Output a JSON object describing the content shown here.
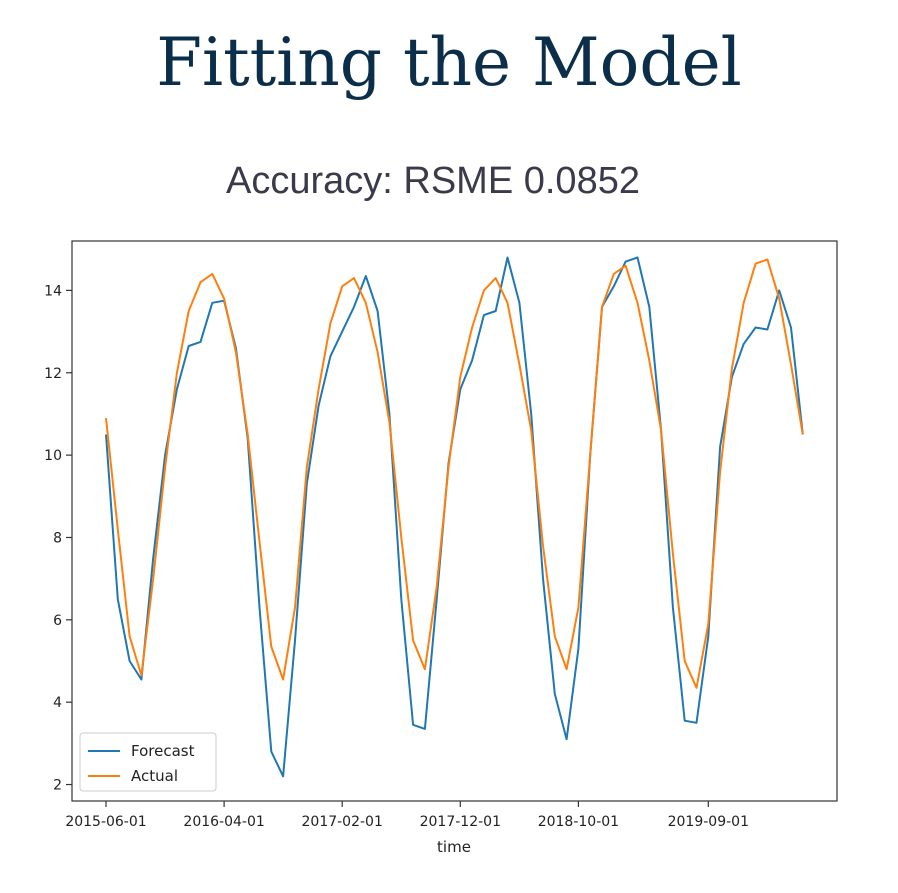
{
  "header": {
    "title": "Fitting the Model",
    "subtitle": "Accuracy: RSME 0.0852"
  },
  "chart_data": {
    "type": "line",
    "title": "",
    "xlabel": "time",
    "ylabel": "",
    "x_tick_labels": [
      "2015-06-01",
      "2016-04-01",
      "2017-02-01",
      "2017-12-01",
      "2018-10-01",
      "2019-09-01"
    ],
    "x_start": "2015-06-01",
    "x_interval": "monthly",
    "y_ticks": [
      2,
      4,
      6,
      8,
      10,
      12,
      14
    ],
    "y_tick_labels": [
      "2",
      "4",
      "6",
      "8",
      "10",
      "12",
      "14"
    ],
    "ylim": [
      1.6,
      15.2
    ],
    "legend_position": "lower-left",
    "grid": false,
    "series": [
      {
        "name": "Forecast",
        "color": "#1f77b4",
        "values": [
          10.5,
          6.5,
          5.0,
          4.55,
          7.5,
          10.0,
          11.6,
          12.65,
          12.75,
          13.7,
          13.75,
          12.6,
          10.4,
          6.3,
          2.8,
          2.2,
          5.5,
          9.3,
          11.2,
          12.4,
          13.0,
          13.6,
          14.35,
          13.5,
          11.0,
          6.5,
          3.45,
          3.35,
          6.5,
          9.8,
          11.6,
          12.3,
          13.4,
          13.5,
          14.8,
          13.7,
          11.0,
          7.0,
          4.2,
          3.1,
          5.3,
          10.0,
          13.6,
          14.1,
          14.7,
          14.8,
          13.6,
          10.6,
          6.3,
          3.55,
          3.5,
          5.6,
          10.2,
          11.9,
          12.7,
          13.1,
          13.05,
          14.0,
          13.1,
          10.5
        ]
      },
      {
        "name": "Actual",
        "color": "#ff7f0e",
        "values": [
          10.9,
          8.2,
          5.6,
          4.65,
          7.0,
          9.7,
          12.0,
          13.5,
          14.2,
          14.4,
          13.8,
          12.5,
          10.5,
          7.9,
          5.35,
          4.55,
          6.3,
          9.7,
          11.6,
          13.2,
          14.1,
          14.3,
          13.7,
          12.5,
          10.8,
          8.0,
          5.5,
          4.8,
          6.8,
          9.7,
          11.9,
          13.1,
          14.0,
          14.3,
          13.7,
          12.2,
          10.6,
          7.8,
          5.6,
          4.8,
          6.3,
          10.0,
          13.6,
          14.4,
          14.6,
          13.7,
          12.3,
          10.6,
          7.6,
          5.0,
          4.35,
          5.9,
          9.6,
          12.1,
          13.7,
          14.65,
          14.75,
          13.8,
          12.2,
          10.5
        ]
      }
    ]
  }
}
